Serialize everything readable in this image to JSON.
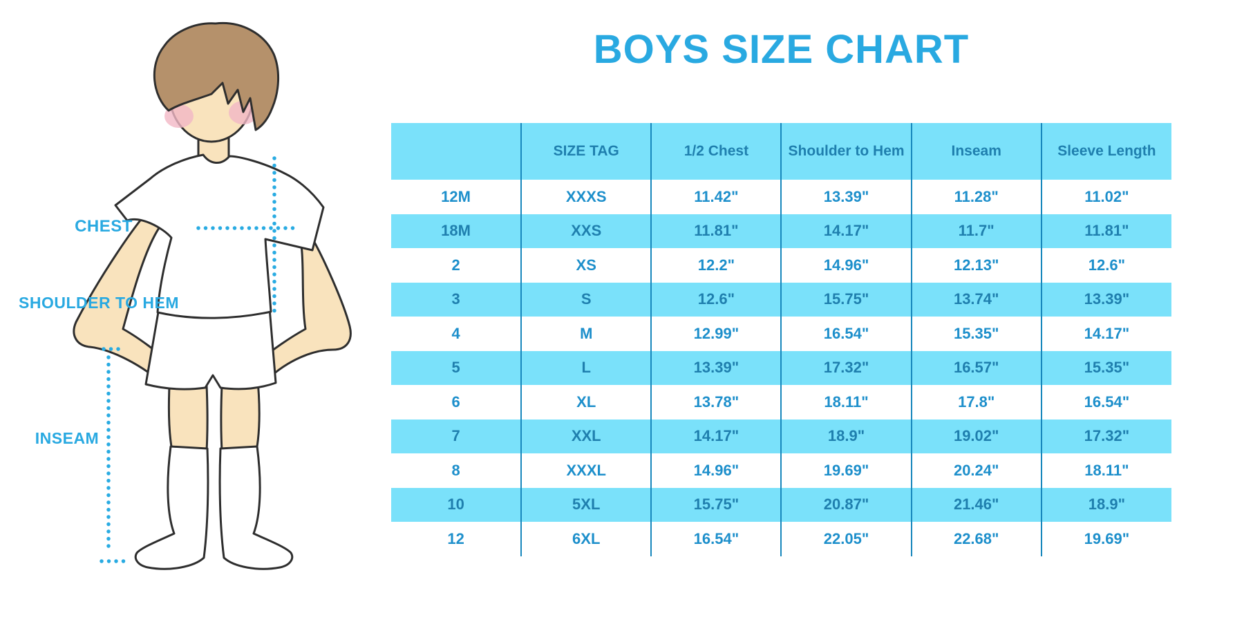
{
  "title": "BOYS SIZE CHART",
  "colors": {
    "page_background": "#ffffff",
    "accent_blue": "#29A9E1",
    "table_fill": "#7AE1FA",
    "column_divider": "#1787BC",
    "header_text": "#1F7FAE",
    "cell_text_white_row": "#1D8FCB",
    "cell_text_blue_row": "#1F7FAE",
    "dotted_line": "#29ABE2",
    "skin": "#F9E3BD",
    "hair": "#B5916B",
    "blush": "#F2B8C6",
    "outline": "#2E2E2E",
    "garment_white": "#ffffff"
  },
  "diagram": {
    "labels": {
      "chest": "CHEST",
      "shoulder_to_hem": "SHOULDER TO HEM",
      "inseam": "INSEAM"
    }
  },
  "chart_data": {
    "type": "table",
    "title": "BOYS SIZE CHART",
    "columns": [
      "",
      "SIZE TAG",
      "1/2 Chest",
      "Shoulder to Hem",
      "Inseam",
      "Sleeve Length"
    ],
    "rows": [
      [
        "12M",
        "XXXS",
        "11.42\"",
        "13.39\"",
        "11.28\"",
        "11.02\""
      ],
      [
        "18M",
        "XXS",
        "11.81\"",
        "14.17\"",
        "11.7\"",
        "11.81\""
      ],
      [
        "2",
        "XS",
        "12.2\"",
        "14.96\"",
        "12.13\"",
        "12.6\""
      ],
      [
        "3",
        "S",
        "12.6\"",
        "15.75\"",
        "13.74\"",
        "13.39\""
      ],
      [
        "4",
        "M",
        "12.99\"",
        "16.54\"",
        "15.35\"",
        "14.17\""
      ],
      [
        "5",
        "L",
        "13.39\"",
        "17.32\"",
        "16.57\"",
        "15.35\""
      ],
      [
        "6",
        "XL",
        "13.78\"",
        "18.11\"",
        "17.8\"",
        "16.54\""
      ],
      [
        "7",
        "XXL",
        "14.17\"",
        "18.9\"",
        "19.02\"",
        "17.32\""
      ],
      [
        "8",
        "XXXL",
        "14.96\"",
        "19.69\"",
        "20.24\"",
        "18.11\""
      ],
      [
        "10",
        "5XL",
        "15.75\"",
        "20.87\"",
        "21.46\"",
        "18.9\""
      ],
      [
        "12",
        "6XL",
        "16.54\"",
        "22.05\"",
        "22.68\"",
        "19.69\""
      ]
    ]
  }
}
